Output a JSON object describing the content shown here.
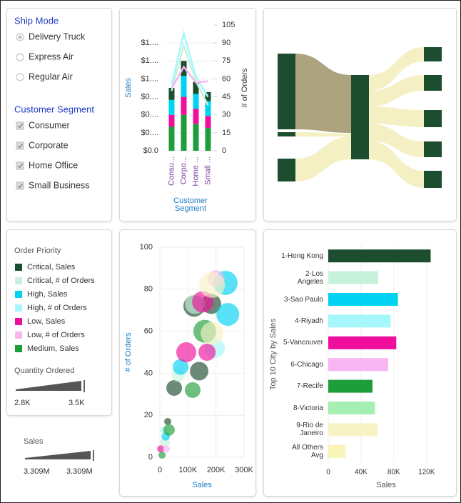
{
  "filters": {
    "ship_mode": {
      "title": "Ship Mode",
      "options": [
        "Delivery Truck",
        "Express Air",
        "Regular Air"
      ]
    },
    "customer_segment": {
      "title": "Customer Segment",
      "options": [
        "Consumer",
        "Corporate",
        "Home Office",
        "Small Business"
      ]
    }
  },
  "legend": {
    "title": "Order Priority"
  },
  "sliders": [
    {
      "label": "Quantity Ordered",
      "min": "2.8K",
      "max": "3.5K"
    },
    {
      "label": "Sales",
      "min": "3.309M",
      "max": "3.309M"
    }
  ],
  "chart_data": [
    {
      "type": "combo",
      "y_label": "Sales",
      "y2_label": "# of Orders",
      "x_label": "Customer Segment",
      "categories": [
        "Consu...",
        "Corpo...",
        "Home ...",
        "Small ..."
      ],
      "ylim": [
        0,
        2.1
      ],
      "yticks": [
        {
          "value": 0,
          "label": "$0.0"
        },
        {
          "value": 0.3,
          "label": "$0...."
        },
        {
          "value": 0.6,
          "label": "$0...."
        },
        {
          "value": 0.9,
          "label": "$0...."
        },
        {
          "value": 1.2,
          "label": "$1...."
        },
        {
          "value": 1.5,
          "label": "$1...."
        },
        {
          "value": 1.8,
          "label": "$1...."
        }
      ],
      "y2lim": [
        0,
        105
      ],
      "y2ticks": [
        0,
        15,
        30,
        45,
        60,
        75,
        90,
        105
      ],
      "grid": true,
      "series": [
        {
          "name": "Critical, Sales",
          "color": "#1b4d2e",
          "values": [
            0.2,
            0.25,
            0.2,
            0.15
          ]
        },
        {
          "name": "Critical, # of Orders",
          "color": "#c6f2dc",
          "axis": "y2",
          "values": [
            50,
            88,
            58,
            38
          ]
        },
        {
          "name": "High, Sales",
          "color": "#00d2f2",
          "values": [
            0.25,
            0.35,
            0.25,
            0.25
          ]
        },
        {
          "name": "High, # of Orders",
          "color": "#a6f7fb",
          "axis": "y2",
          "values": [
            55,
            98,
            62,
            45
          ]
        },
        {
          "name": "Low, Sales",
          "color": "#ef0f9c",
          "values": [
            0.2,
            0.3,
            0.25,
            0.2
          ]
        },
        {
          "name": "Low, # of Orders",
          "color": "#f7b5f2",
          "axis": "y2",
          "values": [
            52,
            70,
            57,
            58
          ]
        },
        {
          "name": "Medium, Sales",
          "color": "#1e9e3a",
          "values": [
            0.4,
            0.6,
            0.45,
            0.38
          ]
        }
      ]
    },
    {
      "type": "bubble",
      "x_label": "Sales",
      "y_label": "# of Orders",
      "xlim": [
        0,
        300000
      ],
      "xticks": [
        0,
        {
          "value": 100000,
          "label": "100K"
        },
        {
          "value": 200000,
          "label": "200K"
        },
        {
          "value": 300000,
          "label": "300K"
        }
      ],
      "ylim": [
        0,
        100
      ],
      "yticks": [
        0,
        20,
        40,
        60,
        80,
        100
      ],
      "grid": true,
      "series": [
        {
          "color": "#1b4d2e",
          "x": [
            122000,
            183000,
            51000,
            140000,
            28000
          ],
          "values": [
            72,
            73,
            33,
            41,
            17
          ],
          "sizes": [
            225,
            196,
            121,
            169,
            25
          ]
        },
        {
          "color": "#c6f2dc",
          "x": [
            125000,
            18000,
            66000
          ],
          "values": [
            73,
            7,
            39
          ],
          "sizes": [
            196,
            49,
            81
          ]
        },
        {
          "color": "#00d2f2",
          "x": [
            234000,
            74000,
            242000,
            21000
          ],
          "values": [
            83,
            43,
            68,
            10
          ],
          "sizes": [
            289,
            121,
            256,
            36
          ]
        },
        {
          "color": "#a6f7fb",
          "x": [
            196000,
            15000
          ],
          "values": [
            52,
            13
          ],
          "sizes": [
            196,
            25
          ]
        },
        {
          "color": "#ef0f9c",
          "x": [
            153000,
            94000,
            168000,
            3000
          ],
          "values": [
            74,
            50,
            50,
            4
          ],
          "sizes": [
            225,
            196,
            144,
            25
          ]
        },
        {
          "color": "#f7b5f2",
          "x": [
            23000,
            200000
          ],
          "values": [
            4,
            85
          ],
          "sizes": [
            25,
            144
          ]
        },
        {
          "color": "#1e9e3a",
          "x": [
            160000,
            33000,
            8000,
            117000
          ],
          "values": [
            60,
            13,
            1,
            32
          ],
          "sizes": [
            256,
            64,
            25,
            121
          ]
        },
        {
          "color": "#f7f3c4",
          "x": [
            186000,
            186000
          ],
          "values": [
            82,
            59
          ],
          "sizes": [
            324,
            256
          ]
        }
      ]
    },
    {
      "type": "hbar",
      "y_label": "Top 10 City by Sales",
      "x_label": "Sales",
      "categories": [
        "1-Hong Kong",
        "2-Los Angeles",
        "3-Sao Paulo",
        "4-Riyadh",
        "5-Vancouver",
        "6-Chicago",
        "7-Recife",
        "8-Victoria",
        "9-Rio de Janeiro",
        "All Others Avg"
      ],
      "values": [
        125000,
        61000,
        85000,
        76000,
        83000,
        73000,
        54000,
        57000,
        60000,
        21000
      ],
      "colors": [
        "#1b4d2e",
        "#c6f2dc",
        "#00d2f2",
        "#a6f7fb",
        "#ef0f9c",
        "#f7b5f2",
        "#1e9e3a",
        "#a6efb2",
        "#f7f3c4",
        "#f9f5b8"
      ],
      "xlim": [
        0,
        142000
      ],
      "xticks": [
        0,
        {
          "value": 40000,
          "label": "40K"
        },
        {
          "value": 80000,
          "label": "80K"
        },
        {
          "value": 120000,
          "label": "120K"
        }
      ],
      "grid": true
    }
  ]
}
